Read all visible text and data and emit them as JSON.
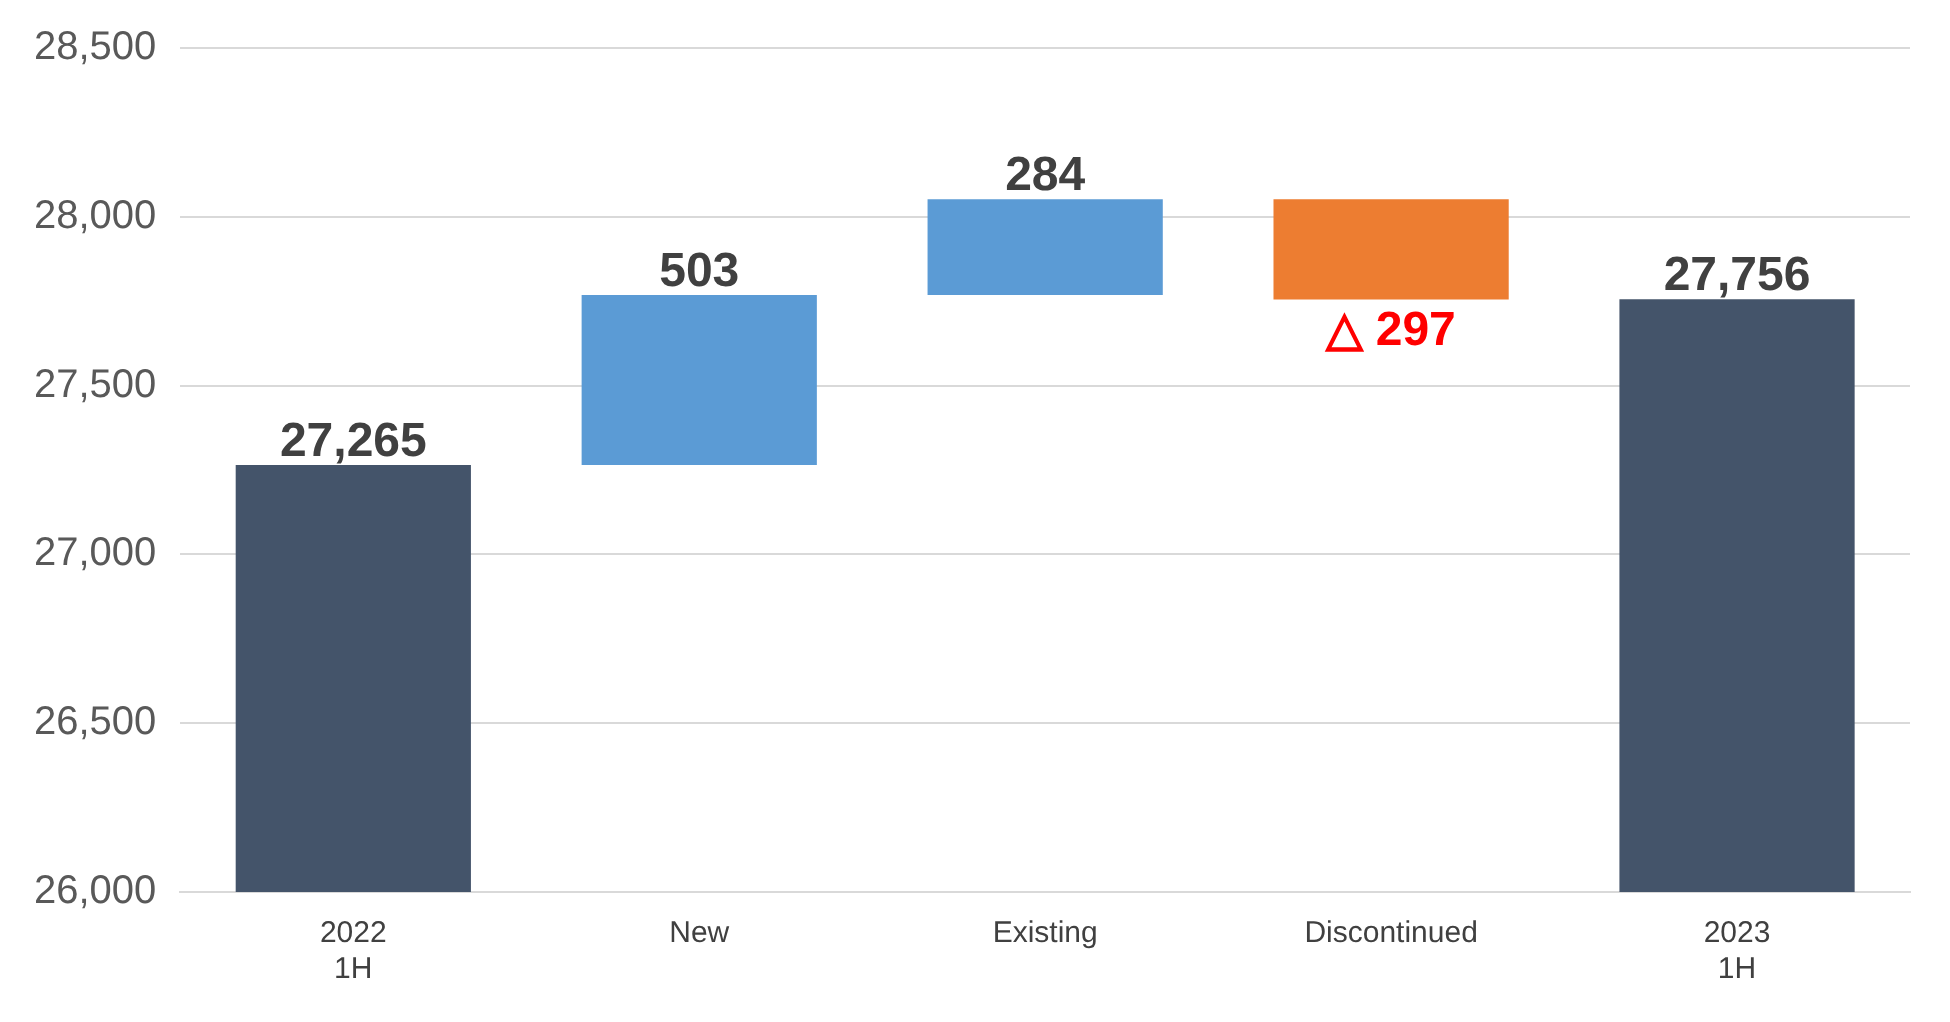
{
  "chart_data": {
    "type": "bar",
    "categories": [
      "2022\n1H",
      "New",
      "Existing",
      "Discontinued",
      "2023\n1H"
    ],
    "base": [
      26000,
      27265,
      27768,
      28052,
      26000
    ],
    "values": [
      1265,
      503,
      284,
      -297,
      1756
    ],
    "colors": [
      "#44546a",
      "#5b9bd5",
      "#5b9bd5",
      "#ed7d31",
      "#44546a"
    ],
    "value_labels": [
      "27,265",
      "503",
      "284",
      "△ 297",
      "27,756"
    ],
    "ylim": [
      26000,
      28500
    ],
    "yticks": [
      {
        "value": 26000,
        "label": "26,000"
      },
      {
        "value": 26500,
        "label": "26,500"
      },
      {
        "value": 27000,
        "label": "27,000"
      },
      {
        "value": 27500,
        "label": "27,500"
      },
      {
        "value": 28000,
        "label": "28,000"
      },
      {
        "value": 28500,
        "label": "28,500"
      }
    ],
    "grid": "y",
    "legend": false
  }
}
